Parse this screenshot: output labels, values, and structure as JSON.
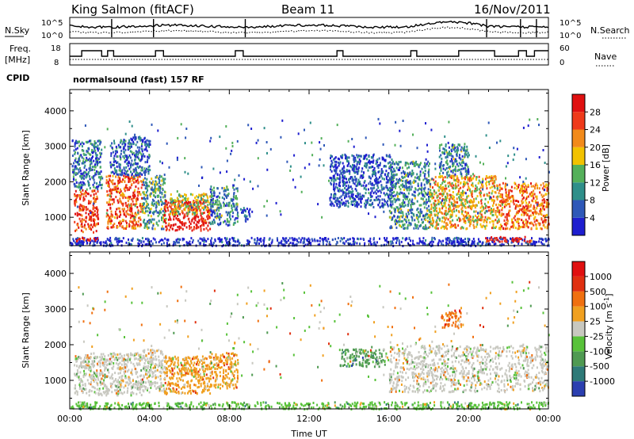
{
  "header": {
    "station": "King Salmon (fitACF)",
    "beam": "Beam 11",
    "date": "16/Nov/2011"
  },
  "noise_panel": {
    "left_label": "N.Sky",
    "right_label": "N.Search",
    "tick_top": "10^5",
    "tick_bottom": "10^0",
    "right_tick_top": "10^5",
    "right_tick_bottom": "10^0"
  },
  "freq_panel": {
    "left_label_1": "Freq.",
    "left_label_2": "[MHz]",
    "left_tick_top": "18",
    "left_tick_bottom": "8",
    "right_label": "Nave",
    "right_tick_top": "60",
    "right_tick_bottom": "0"
  },
  "cpid": {
    "label": "CPID",
    "text": "normalsound (fast) 157 RF"
  },
  "chart_data": [
    {
      "type": "heatmap",
      "name": "power",
      "ylabel": "Slant Range [km]",
      "xlabel": "",
      "ylim": [
        200,
        4600
      ],
      "yticks": [
        1000,
        2000,
        3000,
        4000
      ],
      "xlim": [
        0,
        24
      ],
      "colorbar": {
        "label": "Power [dB]",
        "ticks": [
          "4",
          "8",
          "12",
          "16",
          "20",
          "24",
          "28"
        ],
        "colors": [
          "#1e1ecf",
          "#2e58b8",
          "#2f8f8a",
          "#54b05a",
          "#f2c200",
          "#f28a1a",
          "#ef3a1a",
          "#e01010"
        ]
      },
      "regions": [
        {
          "t0": 0.2,
          "t1": 1.4,
          "r0": 600,
          "r1": 1800,
          "level": 0.85
        },
        {
          "t0": 0.1,
          "t1": 1.6,
          "r0": 1800,
          "r1": 3200,
          "level": 0.25
        },
        {
          "t0": 1.8,
          "t1": 3.6,
          "r0": 700,
          "r1": 2200,
          "level": 0.8
        },
        {
          "t0": 2.0,
          "t1": 4.0,
          "r0": 2200,
          "r1": 3300,
          "level": 0.2
        },
        {
          "t0": 3.6,
          "t1": 4.8,
          "r0": 700,
          "r1": 2200,
          "level": 0.35
        },
        {
          "t0": 4.7,
          "t1": 7.0,
          "r0": 650,
          "r1": 1500,
          "level": 0.95
        },
        {
          "t0": 5.0,
          "t1": 7.0,
          "r0": 1100,
          "r1": 1700,
          "level": 0.5
        },
        {
          "t0": 7.0,
          "t1": 8.4,
          "r0": 800,
          "r1": 1900,
          "level": 0.3
        },
        {
          "t0": 8.5,
          "t1": 9.0,
          "r0": 900,
          "r1": 1300,
          "level": 0.15
        },
        {
          "t0": 13.0,
          "t1": 16.2,
          "r0": 1300,
          "r1": 2800,
          "level": 0.15
        },
        {
          "t0": 16.0,
          "t1": 18.0,
          "r0": 700,
          "r1": 2600,
          "level": 0.3
        },
        {
          "t0": 18.0,
          "t1": 21.5,
          "r0": 700,
          "r1": 2200,
          "level": 0.6
        },
        {
          "t0": 18.5,
          "t1": 20.0,
          "r0": 2200,
          "r1": 3100,
          "level": 0.3
        },
        {
          "t0": 21.5,
          "t1": 24.0,
          "r0": 700,
          "r1": 2000,
          "level": 0.75
        },
        {
          "t0": 0.0,
          "t1": 24.0,
          "r0": 220,
          "r1": 450,
          "level": 0.05
        },
        {
          "t0": 0.3,
          "t1": 1.4,
          "r0": 350,
          "r1": 470,
          "level": 0.95
        },
        {
          "t0": 20.8,
          "t1": 23.2,
          "r0": 330,
          "r1": 480,
          "level": 0.95
        }
      ]
    },
    {
      "type": "heatmap",
      "name": "velocity",
      "ylabel": "Slant Range [km]",
      "xlabel": "Time UT",
      "ylim": [
        200,
        4600
      ],
      "yticks": [
        1000,
        2000,
        3000,
        4000
      ],
      "xlim": [
        0,
        24
      ],
      "xticks": [
        "00:00",
        "04:00",
        "08:00",
        "12:00",
        "16:00",
        "20:00",
        "00:00"
      ],
      "colorbar": {
        "label": "Velocity [m s-1]",
        "label_main": "Velocity [m s",
        "label_sup": "-1",
        "label_end": "]",
        "ticks": [
          "1000",
          "500",
          "100",
          "25",
          "-25",
          "-100",
          "-500",
          "-1000"
        ],
        "colors": [
          "#2b3fb0",
          "#2e7a78",
          "#4f9a52",
          "#58c23a",
          "#c8c8c0",
          "#f0a020",
          "#f07010",
          "#e03010",
          "#e01010"
        ]
      },
      "regions": [
        {
          "t0": 0.2,
          "t1": 3.6,
          "r0": 600,
          "r1": 1800,
          "level": 0.5
        },
        {
          "t0": 3.6,
          "t1": 4.8,
          "r0": 700,
          "r1": 1900,
          "level": 0.5
        },
        {
          "t0": 4.7,
          "t1": 7.0,
          "r0": 650,
          "r1": 1700,
          "level": 0.6
        },
        {
          "t0": 7.0,
          "t1": 8.4,
          "r0": 800,
          "r1": 1800,
          "level": 0.65
        },
        {
          "t0": 13.5,
          "t1": 15.8,
          "r0": 1400,
          "r1": 1900,
          "level": 0.3
        },
        {
          "t0": 16.0,
          "t1": 24.0,
          "r0": 700,
          "r1": 2000,
          "level": 0.5
        },
        {
          "t0": 18.6,
          "t1": 19.6,
          "r0": 2500,
          "r1": 3000,
          "level": 0.75
        },
        {
          "t0": 0.0,
          "t1": 24.0,
          "r0": 220,
          "r1": 420,
          "level": 0.4
        }
      ]
    }
  ]
}
